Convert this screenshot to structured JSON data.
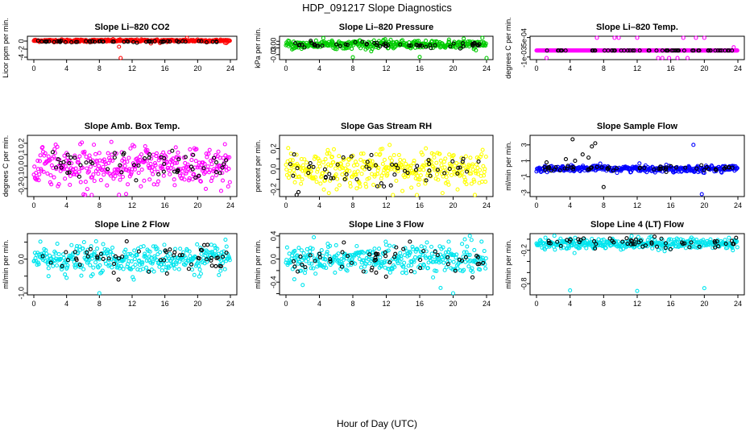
{
  "page_title": "HDP_091217  Slope Diagnostics",
  "x_axis_label": "Hour of Day (UTC)",
  "chart_data": [
    {
      "type": "scatter",
      "title": "Slope Li–820 CO2",
      "ylabel": "Licor ppm per min.",
      "xlim": [
        0,
        24
      ],
      "ylim": [
        -4.6,
        1.2
      ],
      "xticks": [
        0,
        4,
        8,
        12,
        16,
        20,
        24
      ],
      "yticks": [
        -4,
        -2,
        0
      ],
      "ytick_labels": [
        "-4",
        "-2",
        "0"
      ],
      "color": "#ff0000",
      "center": 0.1,
      "spread": 0.15,
      "black_center": -0.15,
      "black_spread": 0.1,
      "outliers": [
        [
          10.4,
          -1.4
        ],
        [
          10.6,
          -4.4
        ],
        [
          18.7,
          0.9
        ],
        [
          18.3,
          0.3
        ],
        [
          20.0,
          0.4
        ],
        [
          23.5,
          -0.5
        ],
        [
          14.3,
          -0.6
        ],
        [
          15.4,
          -0.5
        ]
      ]
    },
    {
      "type": "scatter",
      "title": "Slope Li–820 Pressure",
      "ylabel": "kPa per min.",
      "xlim": [
        0,
        24
      ],
      "ylim": [
        -0.045,
        0.025
      ],
      "xticks": [
        0,
        4,
        8,
        12,
        16,
        20,
        24
      ],
      "yticks": [
        -0.03,
        -0.01,
        0.0,
        0.01
      ],
      "ytick_labels": [
        "-0.03",
        "",
        "0.00",
        ""
      ],
      "color": "#00cc00",
      "center": 0.0,
      "spread": 0.006,
      "black_center": -0.001,
      "black_spread": 0.004,
      "outliers": [
        [
          8.0,
          -0.038
        ],
        [
          16.0,
          -0.037
        ],
        [
          24.0,
          -0.042
        ],
        [
          23.5,
          0.02
        ],
        [
          19.5,
          0.015
        ],
        [
          5.5,
          0.012
        ]
      ]
    },
    {
      "type": "scatter",
      "title": "Slope Li–820 Temp.",
      "ylabel": "degrees C per min.",
      "xlim": [
        0,
        24
      ],
      "ylim": [
        -0.0012,
        0.0006
      ],
      "xticks": [
        0,
        4,
        8,
        12,
        16,
        20,
        24
      ],
      "yticks": [
        -0.001,
        0.0005
      ],
      "ytick_labels": [
        "-1e-03",
        "5e-04"
      ],
      "color": "#ff00ff",
      "center": -0.0005,
      "spread": 0.0,
      "black_center": -0.0005,
      "black_spread": 0.0,
      "outliers": [
        [
          7.2,
          0.00055
        ],
        [
          9.3,
          0.00055
        ],
        [
          9.8,
          0.00055
        ],
        [
          12.0,
          0.00055
        ],
        [
          17.5,
          0.00055
        ],
        [
          19.0,
          0.00055
        ],
        [
          20.0,
          0.00055
        ],
        [
          1.2,
          -0.0011
        ],
        [
          14.5,
          -0.0011
        ],
        [
          15.0,
          -0.0011
        ],
        [
          15.8,
          -0.0011
        ],
        [
          16.8,
          -0.0011
        ],
        [
          18.0,
          -0.0011
        ],
        [
          23.5,
          -0.00025
        ],
        [
          23.9,
          -0.0005
        ]
      ]
    },
    {
      "type": "scatter",
      "title": "Slope Amb. Box Temp.",
      "ylabel": "degrees C per min.",
      "xlim": [
        0,
        24
      ],
      "ylim": [
        -0.27,
        0.27
      ],
      "xticks": [
        0,
        4,
        8,
        12,
        16,
        20,
        24
      ],
      "yticks": [
        -0.2,
        -0.1,
        0.0,
        0.1,
        0.2
      ],
      "ytick_labels": [
        "-0.2",
        "-0.1",
        "0.0",
        "0.1",
        "0.2"
      ],
      "color": "#ff00ff",
      "center": 0.0,
      "spread": 0.09,
      "black_center": 0.0,
      "black_spread": 0.07,
      "outliers": []
    },
    {
      "type": "scatter",
      "title": "Slope Gas Stream RH",
      "ylabel": "percent per min.",
      "xlim": [
        0,
        24
      ],
      "ylim": [
        -0.27,
        0.33
      ],
      "xticks": [
        0,
        4,
        8,
        12,
        16,
        20,
        24
      ],
      "yticks": [
        -0.2,
        -0.1,
        0.0,
        0.1,
        0.2
      ],
      "ytick_labels": [
        "-0.2",
        "",
        "0.0",
        "",
        "0.2"
      ],
      "color": "#ffff00",
      "center": 0.0,
      "spread": 0.09,
      "black_center": 0.0,
      "black_spread": 0.08,
      "outliers": []
    },
    {
      "type": "scatter",
      "title": "Slope Sample Flow",
      "ylabel": "ml/min per min.",
      "xlim": [
        0,
        24
      ],
      "ylim": [
        -3.5,
        4.2
      ],
      "xticks": [
        0,
        4,
        8,
        12,
        16,
        20,
        24
      ],
      "yticks": [
        -3,
        -1,
        1,
        3
      ],
      "ytick_labels": [
        "-3",
        "-1",
        "1",
        "3"
      ],
      "color": "#0000ff",
      "center": 0.0,
      "spread": 0.2,
      "black_center": 0.0,
      "black_spread": 0.2,
      "outliers": [
        [
          4.3,
          3.7
        ],
        [
          5.5,
          1.8
        ],
        [
          6.6,
          2.8
        ],
        [
          7.0,
          3.2
        ],
        [
          18.7,
          3.0
        ],
        [
          19.7,
          -3.2
        ],
        [
          8.0,
          -2.3
        ],
        [
          3.5,
          1.2
        ],
        [
          1.2,
          0.8
        ],
        [
          4.6,
          1.0
        ],
        [
          6.2,
          1.4
        ]
      ]
    },
    {
      "type": "scatter",
      "title": "Slope Line 2 Flow",
      "ylabel": "ml/min per min.",
      "xlim": [
        0,
        24
      ],
      "ylim": [
        -1.05,
        0.75
      ],
      "xticks": [
        0,
        4,
        8,
        12,
        16,
        20,
        24
      ],
      "yticks": [
        -1.0,
        -0.5,
        0.0,
        0.5
      ],
      "ytick_labels": [
        "-1.0",
        "",
        "0.0",
        ""
      ],
      "color": "#00e5ee",
      "center": 0.0,
      "spread": 0.2,
      "black_center": 0.0,
      "black_spread": 0.2,
      "outliers": [
        [
          8.0,
          -1.0
        ],
        [
          1.8,
          -0.5
        ],
        [
          4.0,
          -0.55
        ],
        [
          7.0,
          -0.5
        ]
      ]
    },
    {
      "type": "scatter",
      "title": "Slope Line 3 Flow",
      "ylabel": "ml/min per min.",
      "xlim": [
        0,
        24
      ],
      "ylim": [
        -0.62,
        0.44
      ],
      "xticks": [
        0,
        4,
        8,
        12,
        16,
        20,
        24
      ],
      "yticks": [
        -0.6,
        -0.4,
        -0.2,
        0.0,
        0.2,
        0.4
      ],
      "ytick_labels": [
        "",
        "-0.4",
        "",
        "0.0",
        "",
        "0.4"
      ],
      "color": "#00e5ee",
      "center": 0.0,
      "spread": 0.12,
      "black_center": 0.0,
      "black_spread": 0.12,
      "outliers": [
        [
          20.0,
          -0.6
        ],
        [
          18.5,
          -0.5
        ],
        [
          2.0,
          -0.45
        ],
        [
          1.0,
          -0.35
        ],
        [
          22.0,
          0.4
        ]
      ]
    },
    {
      "type": "scatter",
      "title": "Slope Line 4 (LT) Flow",
      "ylabel": "ml/min per min.",
      "xlim": [
        0,
        24
      ],
      "ylim": [
        -1.0,
        0.1
      ],
      "xticks": [
        0,
        4,
        8,
        12,
        16,
        20,
        24
      ],
      "yticks": [
        -0.8,
        -0.6,
        -0.4,
        -0.2,
        0.0
      ],
      "ytick_labels": [
        "-0.8",
        "",
        "",
        "-0.2",
        ""
      ],
      "color": "#00e5ee",
      "center": -0.08,
      "spread": 0.05,
      "black_center": -0.06,
      "black_spread": 0.04,
      "outliers": [
        [
          4.0,
          -0.92
        ],
        [
          12.0,
          -0.93
        ],
        [
          20.0,
          -0.88
        ]
      ]
    }
  ]
}
